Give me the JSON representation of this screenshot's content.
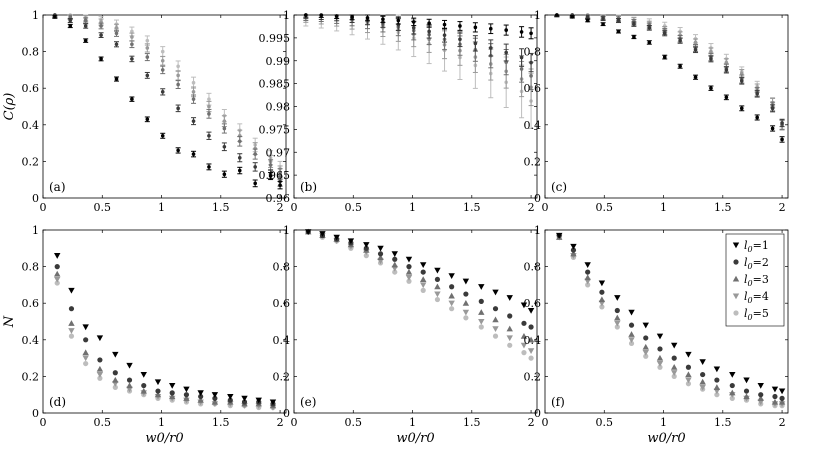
{
  "series_style": [
    {
      "label_prefix": "l",
      "label_sub": "0",
      "label_value": "=1",
      "color": "#000000",
      "marker": "triangle-down"
    },
    {
      "label_prefix": "l",
      "label_sub": "0",
      "label_value": "=2",
      "color": "#3a3a3a",
      "marker": "circle"
    },
    {
      "label_prefix": "l",
      "label_sub": "0",
      "label_value": "=3",
      "color": "#707070",
      "marker": "triangle-up"
    },
    {
      "label_prefix": "l",
      "label_sub": "0",
      "label_value": "=4",
      "color": "#999999",
      "marker": "triangle-down"
    },
    {
      "label_prefix": "l",
      "label_sub": "0",
      "label_value": "=5",
      "color": "#bdbdbd",
      "marker": "circle"
    }
  ],
  "chart_data": [
    {
      "panel": "(a)",
      "type": "scatter",
      "error_bars": true,
      "xlim": [
        0,
        2.05
      ],
      "ylim": [
        0,
        1
      ],
      "xticks": [
        "0",
        "0.5",
        "1",
        "1.5",
        "2"
      ],
      "yticks": [
        "0",
        "0.2",
        "0.4",
        "0.6",
        "0.8",
        "1"
      ],
      "ylabel": "C(ρ)",
      "xlabel": "",
      "x": [
        0.1,
        0.23,
        0.36,
        0.49,
        0.62,
        0.75,
        0.88,
        1.01,
        1.14,
        1.27,
        1.4,
        1.53,
        1.66,
        1.79,
        1.92,
        2.0
      ],
      "series": [
        {
          "name": "l0=1",
          "values": [
            0.99,
            0.94,
            0.86,
            0.76,
            0.65,
            0.54,
            0.43,
            0.34,
            0.26,
            0.24,
            0.17,
            0.13,
            0.15,
            0.08,
            0.12,
            0.07
          ],
          "err": 0.02
        },
        {
          "name": "l0=2",
          "values": [
            1.0,
            0.97,
            0.94,
            0.89,
            0.84,
            0.76,
            0.67,
            0.58,
            0.49,
            0.42,
            0.34,
            0.28,
            0.22,
            0.17,
            0.13,
            0.09
          ],
          "err": 0.025
        },
        {
          "name": "l0=3",
          "values": [
            1.0,
            0.99,
            0.97,
            0.94,
            0.9,
            0.84,
            0.77,
            0.7,
            0.62,
            0.54,
            0.46,
            0.38,
            0.31,
            0.24,
            0.18,
            0.13
          ],
          "err": 0.03
        },
        {
          "name": "l0=4",
          "values": [
            1.0,
            0.99,
            0.98,
            0.96,
            0.93,
            0.88,
            0.82,
            0.75,
            0.67,
            0.58,
            0.5,
            0.42,
            0.34,
            0.27,
            0.2,
            0.14
          ],
          "err": 0.035
        },
        {
          "name": "l0=5",
          "values": [
            1.0,
            1.0,
            0.99,
            0.97,
            0.95,
            0.91,
            0.86,
            0.8,
            0.72,
            0.63,
            0.54,
            0.45,
            0.37,
            0.29,
            0.22,
            0.16
          ],
          "err": 0.04
        }
      ]
    },
    {
      "panel": "(b)",
      "type": "scatter",
      "error_bars": true,
      "xlim": [
        0,
        2.05
      ],
      "ylim": [
        0.96,
        1
      ],
      "xticks": [
        "0",
        "0.5",
        "1",
        "1.5",
        "2"
      ],
      "yticks": [
        "0.96",
        "0.965",
        "0.97",
        "0.975",
        "0.98",
        "0.985",
        "0.99",
        "0.995",
        "1"
      ],
      "ylabel": "",
      "xlabel": "",
      "x": [
        0.1,
        0.23,
        0.36,
        0.49,
        0.62,
        0.75,
        0.88,
        1.01,
        1.14,
        1.27,
        1.4,
        1.53,
        1.66,
        1.79,
        1.92,
        2.0
      ],
      "series": [
        {
          "name": "l0=1",
          "values": [
            1.0,
            1.0,
            0.9998,
            0.9996,
            0.9994,
            0.9991,
            0.9988,
            0.9985,
            0.9982,
            0.9979,
            0.9976,
            0.9973,
            0.997,
            0.9967,
            0.9963,
            0.996
          ],
          "err": 0.0012
        },
        {
          "name": "l0=2",
          "values": [
            1.0,
            0.9999,
            0.9997,
            0.9994,
            0.999,
            0.9985,
            0.9979,
            0.9972,
            0.9964,
            0.9956,
            0.9947,
            0.9938,
            0.9928,
            0.9918,
            0.9907,
            0.9896
          ],
          "err": 0.002
        },
        {
          "name": "l0=3",
          "values": [
            1.0,
            0.9999,
            0.9996,
            0.9992,
            0.9987,
            0.9981,
            0.9974,
            0.9966,
            0.9957,
            0.9947,
            0.9936,
            0.9924,
            0.9911,
            0.9897,
            0.9882,
            0.9867
          ],
          "err": 0.003
        },
        {
          "name": "l0=4",
          "values": [
            1.0,
            0.9998,
            0.9995,
            0.999,
            0.9984,
            0.9977,
            0.9968,
            0.9958,
            0.9947,
            0.9935,
            0.9922,
            0.9908,
            0.9893,
            0.9877,
            0.986,
            0.9842
          ],
          "err": 0.004
        },
        {
          "name": "l0=5",
          "values": [
            1.0,
            0.9998,
            0.9994,
            0.9988,
            0.9981,
            0.9972,
            0.9962,
            0.995,
            0.9937,
            0.9923,
            0.9907,
            0.989,
            0.9872,
            0.9853,
            0.9833,
            0.9812
          ],
          "err": 0.006
        }
      ]
    },
    {
      "panel": "(c)",
      "type": "scatter",
      "error_bars": true,
      "xlim": [
        0,
        2.05
      ],
      "ylim": [
        0,
        1
      ],
      "xticks": [
        "0",
        "0.5",
        "1",
        "1.5",
        "2"
      ],
      "yticks": [
        "0",
        "0.2",
        "0.4",
        "0.6",
        "0.8",
        "1"
      ],
      "ylabel": "",
      "xlabel": "",
      "x": [
        0.1,
        0.23,
        0.36,
        0.49,
        0.62,
        0.75,
        0.88,
        1.01,
        1.14,
        1.27,
        1.4,
        1.53,
        1.66,
        1.79,
        1.92,
        2.0
      ],
      "series": [
        {
          "name": "l0=1",
          "values": [
            1.0,
            0.99,
            0.97,
            0.95,
            0.91,
            0.88,
            0.85,
            0.77,
            0.72,
            0.66,
            0.6,
            0.55,
            0.49,
            0.44,
            0.38,
            0.32
          ],
          "err": 0.015
        },
        {
          "name": "l0=2",
          "values": [
            1.0,
            1.0,
            0.99,
            0.98,
            0.97,
            0.95,
            0.93,
            0.9,
            0.86,
            0.81,
            0.76,
            0.7,
            0.64,
            0.57,
            0.49,
            0.41
          ],
          "err": 0.02
        },
        {
          "name": "l0=3",
          "values": [
            1.0,
            1.0,
            0.99,
            0.99,
            0.98,
            0.96,
            0.94,
            0.91,
            0.87,
            0.82,
            0.77,
            0.71,
            0.65,
            0.58,
            0.5,
            0.4
          ],
          "err": 0.025
        },
        {
          "name": "l0=4",
          "values": [
            1.0,
            1.0,
            1.0,
            0.99,
            0.98,
            0.97,
            0.95,
            0.92,
            0.89,
            0.85,
            0.8,
            0.74,
            0.68,
            0.6,
            0.52,
            0.4
          ],
          "err": 0.025
        },
        {
          "name": "l0=5",
          "values": [
            1.0,
            1.0,
            1.0,
            0.99,
            0.99,
            0.97,
            0.96,
            0.94,
            0.91,
            0.87,
            0.82,
            0.76,
            0.69,
            0.61,
            0.52,
            0.4
          ],
          "err": 0.03
        }
      ]
    },
    {
      "panel": "(d)",
      "type": "scatter",
      "error_bars": false,
      "xlim": [
        0,
        2.05
      ],
      "ylim": [
        0,
        1
      ],
      "xticks": [
        "0",
        "0.5",
        "1",
        "1.5",
        "2"
      ],
      "yticks": [
        "0",
        "0.2",
        "0.4",
        "0.6",
        "0.8",
        "1"
      ],
      "ylabel": "N",
      "xlabel": "w0/r0",
      "x": [
        0.12,
        0.24,
        0.36,
        0.48,
        0.61,
        0.73,
        0.85,
        0.97,
        1.09,
        1.21,
        1.33,
        1.45,
        1.58,
        1.7,
        1.82,
        1.94
      ],
      "series": [
        {
          "name": "l0=1",
          "values": [
            0.86,
            0.67,
            0.47,
            0.41,
            0.32,
            0.26,
            0.21,
            0.17,
            0.15,
            0.13,
            0.11,
            0.1,
            0.09,
            0.08,
            0.07,
            0.06
          ]
        },
        {
          "name": "l0=2",
          "values": [
            0.8,
            0.57,
            0.4,
            0.29,
            0.22,
            0.18,
            0.15,
            0.12,
            0.11,
            0.1,
            0.09,
            0.08,
            0.07,
            0.06,
            0.06,
            0.05
          ]
        },
        {
          "name": "l0=3",
          "values": [
            0.76,
            0.49,
            0.33,
            0.24,
            0.18,
            0.15,
            0.12,
            0.1,
            0.09,
            0.08,
            0.07,
            0.06,
            0.06,
            0.05,
            0.05,
            0.04
          ]
        },
        {
          "name": "l0=4",
          "values": [
            0.73,
            0.45,
            0.3,
            0.21,
            0.16,
            0.13,
            0.11,
            0.09,
            0.08,
            0.07,
            0.06,
            0.05,
            0.05,
            0.04,
            0.04,
            0.03
          ]
        },
        {
          "name": "l0=5",
          "values": [
            0.71,
            0.42,
            0.27,
            0.19,
            0.14,
            0.12,
            0.1,
            0.08,
            0.07,
            0.06,
            0.05,
            0.05,
            0.04,
            0.04,
            0.03,
            0.03
          ]
        }
      ]
    },
    {
      "panel": "(e)",
      "type": "scatter",
      "error_bars": false,
      "xlim": [
        0,
        2.05
      ],
      "ylim": [
        0,
        1
      ],
      "xticks": [
        "0",
        "0.5",
        "1",
        "1.5",
        "2"
      ],
      "yticks": [
        "0",
        "0.2",
        "0.4",
        "0.6",
        "0.8",
        "1"
      ],
      "ylabel": "",
      "xlabel": "w0/r0",
      "x": [
        0.12,
        0.24,
        0.36,
        0.48,
        0.61,
        0.73,
        0.85,
        0.97,
        1.09,
        1.21,
        1.33,
        1.45,
        1.58,
        1.7,
        1.82,
        1.94,
        2.0
      ],
      "series": [
        {
          "name": "l0=1",
          "values": [
            0.99,
            0.98,
            0.96,
            0.94,
            0.92,
            0.9,
            0.87,
            0.84,
            0.81,
            0.78,
            0.75,
            0.72,
            0.69,
            0.66,
            0.63,
            0.59,
            0.56
          ]
        },
        {
          "name": "l0=2",
          "values": [
            0.99,
            0.97,
            0.95,
            0.93,
            0.9,
            0.87,
            0.84,
            0.8,
            0.77,
            0.73,
            0.69,
            0.65,
            0.61,
            0.57,
            0.53,
            0.49,
            0.47
          ]
        },
        {
          "name": "l0=3",
          "values": [
            0.99,
            0.97,
            0.95,
            0.92,
            0.89,
            0.85,
            0.81,
            0.77,
            0.73,
            0.69,
            0.64,
            0.6,
            0.55,
            0.51,
            0.46,
            0.42,
            0.4
          ]
        },
        {
          "name": "l0=4",
          "values": [
            0.99,
            0.97,
            0.94,
            0.91,
            0.88,
            0.83,
            0.79,
            0.74,
            0.7,
            0.65,
            0.6,
            0.55,
            0.5,
            0.46,
            0.41,
            0.37,
            0.34
          ]
        },
        {
          "name": "l0=5",
          "values": [
            0.99,
            0.96,
            0.94,
            0.9,
            0.86,
            0.82,
            0.77,
            0.72,
            0.67,
            0.62,
            0.57,
            0.52,
            0.47,
            0.42,
            0.37,
            0.33,
            0.3
          ]
        }
      ]
    },
    {
      "panel": "(f)",
      "type": "scatter",
      "error_bars": false,
      "xlim": [
        0,
        2.05
      ],
      "ylim": [
        0,
        1
      ],
      "xticks": [
        "0",
        "0.5",
        "1",
        "1.5",
        "2"
      ],
      "yticks": [
        "0",
        "0.2",
        "0.4",
        "0.6",
        "0.8",
        "1"
      ],
      "ylabel": "",
      "xlabel": "w0/r0",
      "x": [
        0.12,
        0.24,
        0.36,
        0.48,
        0.61,
        0.73,
        0.85,
        0.97,
        1.09,
        1.21,
        1.33,
        1.45,
        1.58,
        1.7,
        1.82,
        1.94,
        2.0
      ],
      "series": [
        {
          "name": "l0=1",
          "values": [
            0.97,
            0.91,
            0.81,
            0.71,
            0.63,
            0.55,
            0.48,
            0.42,
            0.37,
            0.32,
            0.28,
            0.24,
            0.21,
            0.18,
            0.15,
            0.13,
            0.12
          ]
        },
        {
          "name": "l0=2",
          "values": [
            0.97,
            0.89,
            0.77,
            0.66,
            0.56,
            0.48,
            0.41,
            0.35,
            0.3,
            0.25,
            0.21,
            0.18,
            0.15,
            0.12,
            0.1,
            0.09,
            0.08
          ]
        },
        {
          "name": "l0=3",
          "values": [
            0.96,
            0.87,
            0.74,
            0.62,
            0.52,
            0.43,
            0.36,
            0.3,
            0.25,
            0.21,
            0.17,
            0.14,
            0.11,
            0.09,
            0.08,
            0.06,
            0.06
          ]
        },
        {
          "name": "l0=4",
          "values": [
            0.96,
            0.86,
            0.72,
            0.6,
            0.49,
            0.4,
            0.33,
            0.27,
            0.22,
            0.18,
            0.14,
            0.12,
            0.1,
            0.08,
            0.06,
            0.05,
            0.05
          ]
        },
        {
          "name": "l0=5",
          "values": [
            0.96,
            0.85,
            0.7,
            0.58,
            0.47,
            0.38,
            0.31,
            0.25,
            0.2,
            0.16,
            0.13,
            0.1,
            0.08,
            0.07,
            0.05,
            0.04,
            0.04
          ]
        }
      ]
    }
  ]
}
